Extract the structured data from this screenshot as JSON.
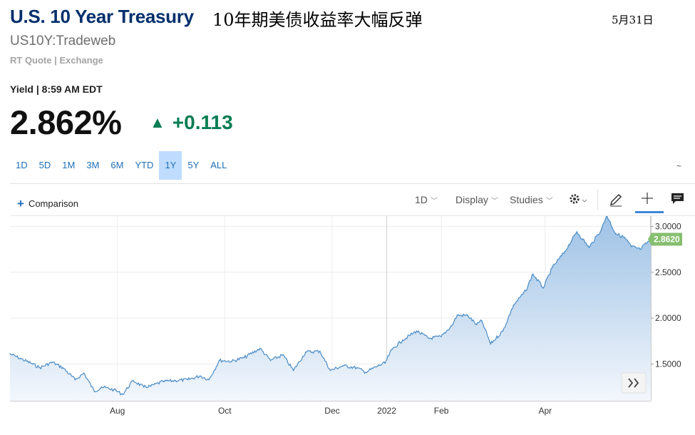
{
  "header": {
    "title": "U.S. 10 Year Treasury",
    "cn_headline": "10年期美债收益率大幅反弹",
    "date": "5月31日",
    "ticker": "US10Y:Tradeweb",
    "quote_source": "RT Quote | Exchange",
    "yield_time": "Yield | 8:59 AM EDT",
    "last_price": "2.862%",
    "change": "+0.113",
    "change_color": "#087c52"
  },
  "ranges": [
    "1D",
    "5D",
    "1M",
    "3M",
    "6M",
    "YTD",
    "1Y",
    "5Y",
    "ALL"
  ],
  "active_range": "1Y",
  "toolbar": {
    "comparison": "Comparison",
    "interval": "1D",
    "display": "Display",
    "studies": "Studies",
    "tilde": "~"
  },
  "icons": [
    "plus-icon",
    "settings-gear-icon",
    "pencil-icon",
    "crosshair-icon",
    "comment-icon",
    "double-chevron-right-icon"
  ],
  "colors": {
    "accent": "#1f6fb8",
    "line": "#4a8cc6",
    "fill_top": "#9ec2e6",
    "fill_bottom": "#f3f7fc",
    "last_tag": "#86bf6f",
    "title": "#002f6c"
  },
  "chart_data": {
    "type": "area",
    "x_axis": {
      "type": "date",
      "range": [
        "2021-06-01",
        "2022-05-31"
      ],
      "ticks": [
        {
          "date": "2021-08-01",
          "label": "Aug"
        },
        {
          "date": "2021-10-01",
          "label": "Oct"
        },
        {
          "date": "2021-12-01",
          "label": "Dec"
        },
        {
          "date": "2022-01-01",
          "label": "2022"
        },
        {
          "date": "2022-02-01",
          "label": "Feb"
        },
        {
          "date": "2022-04-01",
          "label": "Apr"
        }
      ]
    },
    "y_axis": {
      "range": [
        1.1,
        3.05
      ],
      "ticks": [
        {
          "value": 1.5,
          "label": "1.5000"
        },
        {
          "value": 2.0,
          "label": "2.0000"
        },
        {
          "value": 2.5,
          "label": "2.5000"
        },
        {
          "value": 3.0,
          "label": "3.0000"
        }
      ]
    },
    "grid": "on",
    "last_value_label": "2.8620",
    "points": [
      [
        "2021-06-01",
        1.61
      ],
      [
        "2021-06-07",
        1.56
      ],
      [
        "2021-06-14",
        1.5
      ],
      [
        "2021-06-18",
        1.46
      ],
      [
        "2021-06-25",
        1.52
      ],
      [
        "2021-07-01",
        1.46
      ],
      [
        "2021-07-08",
        1.33
      ],
      [
        "2021-07-13",
        1.4
      ],
      [
        "2021-07-19",
        1.2
      ],
      [
        "2021-07-23",
        1.25
      ],
      [
        "2021-07-30",
        1.22
      ],
      [
        "2021-08-04",
        1.17
      ],
      [
        "2021-08-10",
        1.32
      ],
      [
        "2021-08-16",
        1.25
      ],
      [
        "2021-08-20",
        1.26
      ],
      [
        "2021-08-27",
        1.31
      ],
      [
        "2021-09-03",
        1.32
      ],
      [
        "2021-09-10",
        1.33
      ],
      [
        "2021-09-17",
        1.37
      ],
      [
        "2021-09-22",
        1.33
      ],
      [
        "2021-09-28",
        1.54
      ],
      [
        "2021-10-05",
        1.53
      ],
      [
        "2021-10-12",
        1.57
      ],
      [
        "2021-10-21",
        1.67
      ],
      [
        "2021-10-27",
        1.54
      ],
      [
        "2021-11-03",
        1.6
      ],
      [
        "2021-11-09",
        1.43
      ],
      [
        "2021-11-16",
        1.63
      ],
      [
        "2021-11-24",
        1.64
      ],
      [
        "2021-11-30",
        1.43
      ],
      [
        "2021-12-07",
        1.48
      ],
      [
        "2021-12-15",
        1.46
      ],
      [
        "2021-12-20",
        1.41
      ],
      [
        "2021-12-27",
        1.48
      ],
      [
        "2021-12-31",
        1.51
      ],
      [
        "2022-01-04",
        1.66
      ],
      [
        "2022-01-10",
        1.76
      ],
      [
        "2022-01-18",
        1.86
      ],
      [
        "2022-01-25",
        1.78
      ],
      [
        "2022-02-01",
        1.8
      ],
      [
        "2022-02-07",
        1.92
      ],
      [
        "2022-02-10",
        2.03
      ],
      [
        "2022-02-16",
        2.03
      ],
      [
        "2022-02-21",
        1.93
      ],
      [
        "2022-02-24",
        1.97
      ],
      [
        "2022-03-01",
        1.72
      ],
      [
        "2022-03-08",
        1.86
      ],
      [
        "2022-03-14",
        2.14
      ],
      [
        "2022-03-21",
        2.3
      ],
      [
        "2022-03-25",
        2.48
      ],
      [
        "2022-03-31",
        2.33
      ],
      [
        "2022-04-05",
        2.55
      ],
      [
        "2022-04-12",
        2.72
      ],
      [
        "2022-04-19",
        2.94
      ],
      [
        "2022-04-26",
        2.77
      ],
      [
        "2022-05-03",
        2.97
      ],
      [
        "2022-05-06",
        3.12
      ],
      [
        "2022-05-11",
        2.92
      ],
      [
        "2022-05-16",
        2.88
      ],
      [
        "2022-05-20",
        2.78
      ],
      [
        "2022-05-25",
        2.75
      ],
      [
        "2022-05-31",
        2.86
      ]
    ]
  }
}
